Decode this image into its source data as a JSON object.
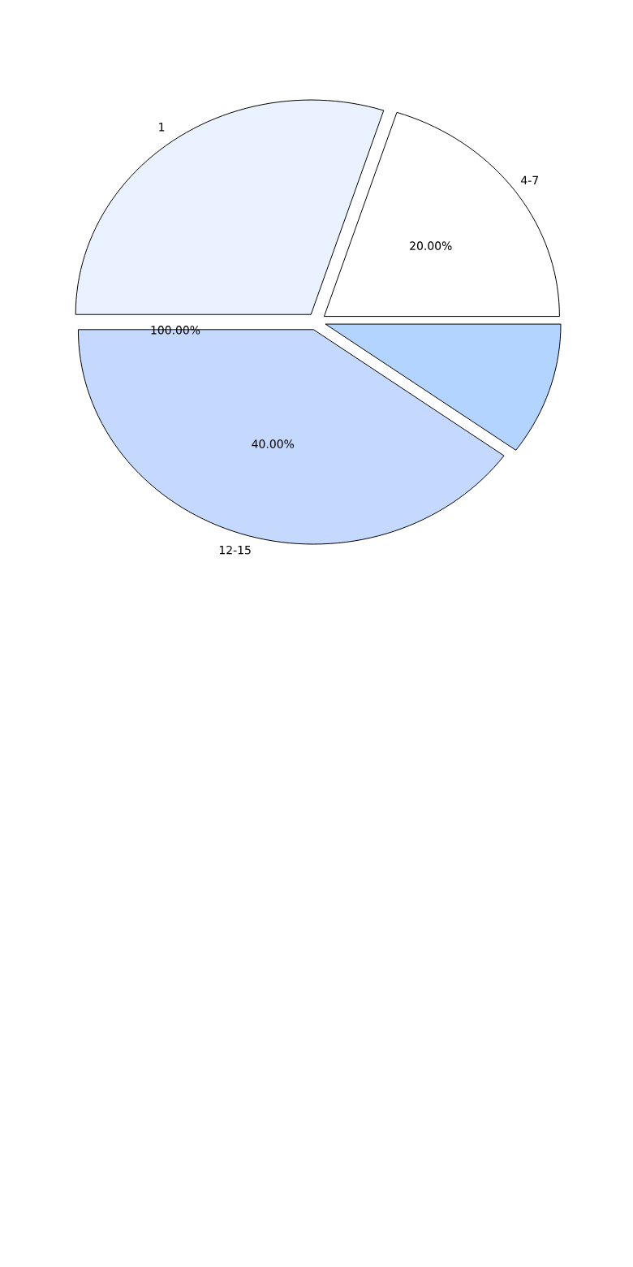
{
  "chart_data": {
    "type": "pie",
    "categories": [
      "4-7",
      null,
      "12-15",
      "1"
    ],
    "values": [
      20,
      10,
      40,
      30
    ],
    "colors": [
      "#ffffff",
      "#b3d4ff",
      "#c5d9ff",
      "#eaf1ff"
    ],
    "value_labels": [
      "20.00%",
      null,
      "40.00%",
      null
    ],
    "annotations": [
      "100.00%"
    ]
  }
}
